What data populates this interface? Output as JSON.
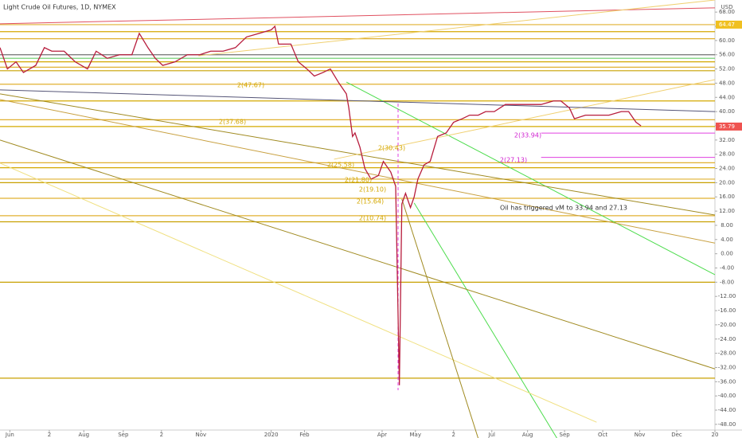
{
  "chart_data": {
    "type": "line",
    "title": "Light Crude Oil Futures, 1D, NYMEX",
    "currency": "USD",
    "ylim": [
      -49.6,
      71.4
    ],
    "xlim": [
      0,
      580
    ],
    "yticks": [
      {
        "value": 68,
        "label": "68.00"
      },
      {
        "value": 64,
        "label": "64.00"
      },
      {
        "value": 60,
        "label": "60.00"
      },
      {
        "value": 56,
        "label": "56.00"
      },
      {
        "value": 52,
        "label": "52.00"
      },
      {
        "value": 48,
        "label": "48.00"
      },
      {
        "value": 44,
        "label": "44.00"
      },
      {
        "value": 40,
        "label": "40.00"
      },
      {
        "value": 36,
        "label": "36.00"
      },
      {
        "value": 32,
        "label": "32.00"
      },
      {
        "value": 28,
        "label": "28.00"
      },
      {
        "value": 24,
        "label": "24.00"
      },
      {
        "value": 20,
        "label": "20.00"
      },
      {
        "value": 16,
        "label": "16.00"
      },
      {
        "value": 12,
        "label": "12.00"
      },
      {
        "value": 8,
        "label": "8.00"
      },
      {
        "value": 4,
        "label": "4.00"
      },
      {
        "value": 0,
        "label": "0.00"
      },
      {
        "value": -4,
        "label": "-4.00"
      },
      {
        "value": -8,
        "label": "-8.00"
      },
      {
        "value": -12,
        "label": "-12.00"
      },
      {
        "value": -16,
        "label": "-16.00"
      },
      {
        "value": -20,
        "label": "-20.00"
      },
      {
        "value": -24,
        "label": "-24.00"
      },
      {
        "value": -28,
        "label": "-28.00"
      },
      {
        "value": -32,
        "label": "-32.00"
      },
      {
        "value": -36,
        "label": "-36.00"
      },
      {
        "value": -40,
        "label": "-40.00"
      },
      {
        "value": -44,
        "label": "-44.00"
      },
      {
        "value": -48,
        "label": "-48.00"
      }
    ],
    "xticks": [
      {
        "value": 8,
        "label": "Jun"
      },
      {
        "value": 40,
        "label": "2"
      },
      {
        "value": 68,
        "label": "Aug"
      },
      {
        "value": 100,
        "label": "Sep"
      },
      {
        "value": 131,
        "label": "2"
      },
      {
        "value": 163,
        "label": "Nov"
      },
      {
        "value": 220,
        "label": "2020"
      },
      {
        "value": 247,
        "label": "Feb"
      },
      {
        "value": 310,
        "label": "Apr"
      },
      {
        "value": 337,
        "label": "May"
      },
      {
        "value": 368,
        "label": "2"
      },
      {
        "value": 399,
        "label": "Jul"
      },
      {
        "value": 428,
        "label": "Aug"
      },
      {
        "value": 458,
        "label": "Sep"
      },
      {
        "value": 489,
        "label": "Oct"
      },
      {
        "value": 519,
        "label": "Nov"
      },
      {
        "value": 549,
        "label": "Dec"
      },
      {
        "value": 580,
        "label": "20"
      }
    ],
    "series": [
      {
        "name": "Light Crude Oil Futures",
        "color": "#b71c3c",
        "x": [
          0,
          6,
          13,
          19,
          29,
          36,
          42,
          52,
          61,
          71,
          78,
          87,
          97,
          107,
          113,
          120,
          126,
          132,
          142,
          152,
          162,
          171,
          181,
          191,
          200,
          210,
          220,
          223,
          226,
          236,
          242,
          249,
          255,
          262,
          268,
          275,
          281,
          283,
          286,
          288,
          292,
          296,
          301,
          307,
          311,
          317,
          321,
          324,
          326,
          329,
          333,
          336,
          339,
          344,
          349,
          355,
          362,
          368,
          375,
          381,
          388,
          394,
          401,
          410,
          420,
          430,
          439,
          449,
          455,
          462,
          466,
          475,
          485,
          494,
          504,
          510,
          516,
          520
        ],
        "values": [
          58,
          52,
          54,
          51,
          53,
          58,
          57,
          57,
          54,
          52,
          57,
          55,
          56,
          56,
          62,
          58,
          55,
          53,
          54,
          56,
          56,
          57,
          57,
          58,
          61,
          62,
          63,
          64,
          59,
          59,
          54,
          52,
          50,
          51,
          52,
          48,
          45,
          41,
          33,
          34,
          30,
          24,
          21,
          22,
          26,
          23,
          19,
          -37,
          14,
          17,
          13,
          16,
          21,
          25,
          26,
          33,
          34,
          37,
          38,
          39,
          39,
          40,
          40,
          42,
          42,
          42,
          42,
          43,
          43,
          41,
          38,
          39,
          39,
          39,
          40,
          40,
          37,
          36
        ]
      }
    ],
    "price_labels": [
      {
        "value": 64.47,
        "label": "64.47",
        "color": "#f0c020"
      },
      {
        "value": 35.79,
        "label": "35.79",
        "color": "#ef5350"
      }
    ],
    "hlines": [
      {
        "value": 64.47,
        "color": "#e0b030"
      },
      {
        "value": 62.5,
        "color": "#d4a800"
      },
      {
        "value": 60.5,
        "color": "#e0b030"
      },
      {
        "value": 56,
        "color": "#707070"
      },
      {
        "value": 55,
        "color": "#66cc66"
      },
      {
        "value": 54,
        "color": "#d4a800"
      },
      {
        "value": 52.5,
        "color": "#e0b030"
      },
      {
        "value": 51.5,
        "color": "#c8a000"
      },
      {
        "value": 47.7,
        "color": "#e0b030"
      },
      {
        "value": 43,
        "color": "#d4a800"
      },
      {
        "value": 37.7,
        "color": "#e0b030"
      },
      {
        "value": 35.8,
        "color": "#d4a800"
      },
      {
        "value": 25.6,
        "color": "#e0b030"
      },
      {
        "value": 24.2,
        "color": "#d4a800"
      },
      {
        "value": 21,
        "color": "#e0b030"
      },
      {
        "value": 20,
        "color": "#c8a000"
      },
      {
        "value": 15.6,
        "color": "#e0b030"
      },
      {
        "value": 10.7,
        "color": "#e0b030"
      },
      {
        "value": 9,
        "color": "#c8a000"
      },
      {
        "value": -8,
        "color": "#c8a000"
      },
      {
        "value": -35,
        "color": "#c8a000"
      }
    ],
    "targets": [
      {
        "value": 33.94,
        "start": 439,
        "color": "#e040e0"
      },
      {
        "value": 27.13,
        "start": 439,
        "color": "#e040e0"
      }
    ],
    "trendlines": [
      {
        "x": [
          281,
          580
        ],
        "y": [
          48.3,
          -5.9
        ],
        "color": "#4cdc4c"
      },
      {
        "x": [
          336,
          452
        ],
        "y": [
          14.3,
          -52
        ],
        "color": "#4cdc4c"
      },
      {
        "x": [
          0,
          580
        ],
        "y": [
          32,
          -32.4
        ],
        "color": "#a08a20"
      },
      {
        "x": [
          0,
          484
        ],
        "y": [
          25.5,
          -47.4
        ],
        "color": "#f0e080"
      },
      {
        "x": [
          0,
          580
        ],
        "y": [
          45,
          10.9
        ],
        "color": "#a08a20"
      },
      {
        "x": [
          0,
          580
        ],
        "y": [
          43.4,
          3
        ],
        "color": "#c8a040"
      },
      {
        "x": [
          0,
          580
        ],
        "y": [
          64.7,
          69.2
        ],
        "color": "#e05060"
      },
      {
        "x": [
          271,
          580
        ],
        "y": [
          26.6,
          49
        ],
        "color": "#f0d070"
      },
      {
        "x": [
          0,
          580
        ],
        "y": [
          46.1,
          40
        ],
        "color": "#555577"
      },
      {
        "x": [
          326,
          388
        ],
        "y": [
          15.4,
          -52
        ],
        "color": "#a08a20"
      },
      {
        "x": [
          161,
          580
        ],
        "y": [
          55.7,
          71.4
        ],
        "color": "#f0d070"
      }
    ],
    "annotations": [
      "2(47.67)",
      "2(37.68)",
      "2(30.43)",
      "2(25.58)",
      "2(21.80)",
      "2(19.10)",
      "2(15.64)",
      "2(10.74)",
      "2(33.94)",
      "2(27.13)",
      "Oil has triggered vM to 33.94 and 27.13"
    ]
  }
}
